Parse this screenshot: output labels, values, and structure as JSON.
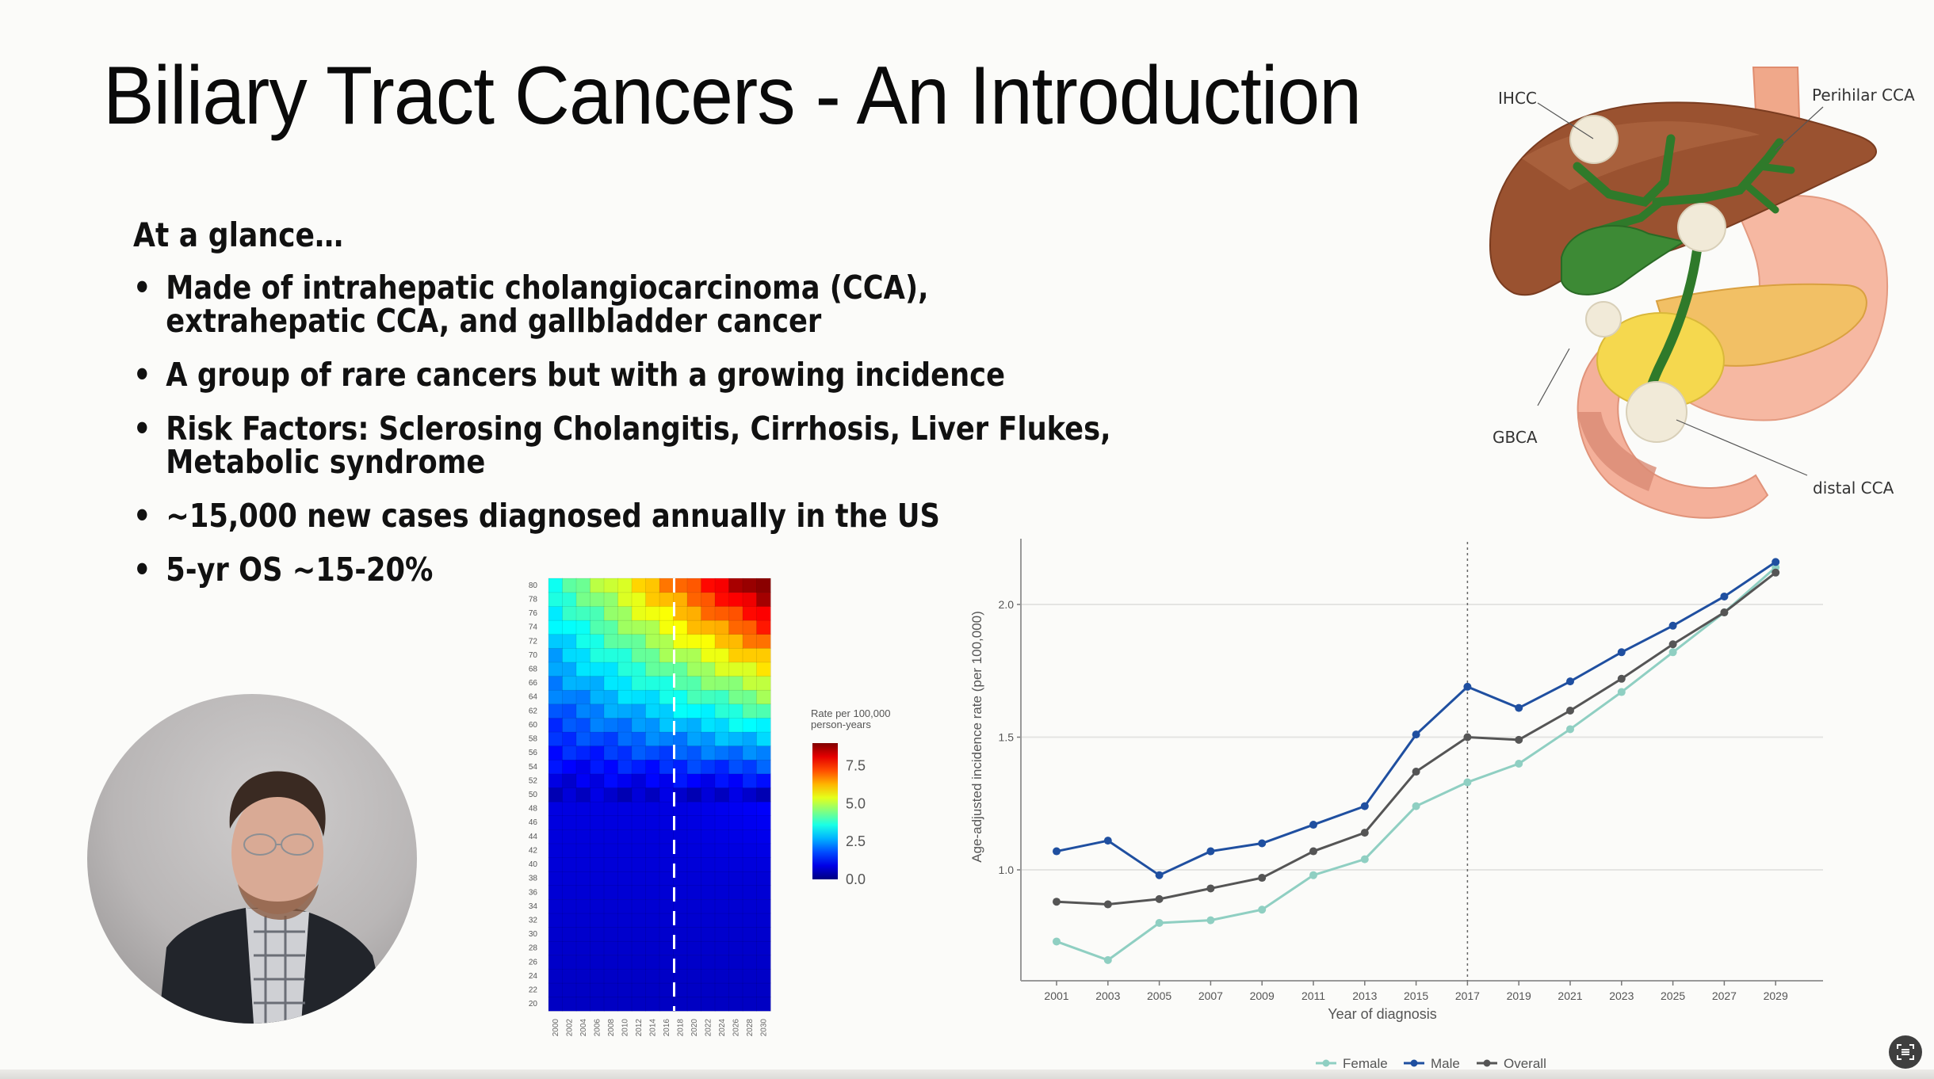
{
  "slide": {
    "title": "Biliary Tract Cancers - An Introduction",
    "subhead": "At a glance…",
    "bullets": [
      "Made of intrahepatic cholangiocarcinoma (CCA),\nextrahepatic CCA, and gallbladder cancer",
      "A group of rare cancers but with a growing incidence",
      "Risk Factors: Sclerosing Cholangitis, Cirrhosis, Liver Flukes,\nMetabolic syndrome",
      "~15,000 new cases diagnosed annually in the US",
      "5-yr OS ~15-20%"
    ]
  },
  "anatomy": {
    "labels": {
      "ihcc": "IHCC",
      "perihilar": "Perihilar CCA",
      "gbca": "GBCA",
      "distal": "distal CCA"
    }
  },
  "webcam": {
    "icon": "presenter-video"
  },
  "fab": {
    "icon": "scan-text-icon"
  },
  "chart_data": [
    {
      "type": "heatmap",
      "title": "",
      "x": [
        2000,
        2002,
        2004,
        2006,
        2008,
        2010,
        2012,
        2014,
        2016,
        2018,
        2020,
        2022,
        2024,
        2026,
        2028,
        2030
      ],
      "x_tick_labels": [
        "2000",
        "2002",
        "2004",
        "2006",
        "2008",
        "2010",
        "2012",
        "2014",
        "2016",
        "2018",
        "2020",
        "2022",
        "2024",
        "2026",
        "2028",
        "2030"
      ],
      "y_tick_labels": [
        "20",
        "22",
        "24",
        "26",
        "28",
        "30",
        "32",
        "34",
        "36",
        "38",
        "40",
        "42",
        "44",
        "46",
        "48",
        "50",
        "52",
        "54",
        "56",
        "58",
        "60",
        "62",
        "64",
        "66",
        "68",
        "70",
        "72",
        "74",
        "76",
        "78",
        "80"
      ],
      "xlabel": "",
      "ylabel": "",
      "colorbar": {
        "title": "Rate per  100,000\nperson-years",
        "ticks": [
          "0.0",
          "2.5",
          "5.0",
          "7.5"
        ],
        "range": [
          0,
          9
        ]
      },
      "reference_line": {
        "x": 2018,
        "style": "white dashed"
      },
      "description": "Incidence rate by age (rows 20–80) and year (columns 2000–2030); rates near 0 for ages <50, rising with age and calendar year, highest (~8+) for ages 70–80 after 2022"
    },
    {
      "type": "line",
      "title": "",
      "xlabel": "Year of diagnosis",
      "ylabel": "Age-adjusted incidence rate (per 100,000)",
      "x": [
        2001,
        2003,
        2005,
        2007,
        2009,
        2011,
        2013,
        2015,
        2017,
        2019,
        2021,
        2023,
        2025,
        2027,
        2029
      ],
      "yticks": [
        "1.0",
        "1.5",
        "2.0"
      ],
      "ylim": [
        0.58,
        2.23
      ],
      "grid": "horizontal",
      "reference_line": {
        "x": 2017,
        "style": "dotted"
      },
      "legend_position": "bottom",
      "series": [
        {
          "name": "Female",
          "color": "#8fcfc2",
          "values": [
            0.73,
            0.66,
            0.8,
            0.81,
            0.85,
            0.98,
            1.04,
            1.24,
            1.33,
            1.4,
            1.53,
            1.67,
            1.82,
            1.97,
            2.14
          ]
        },
        {
          "name": "Male",
          "color": "#1f4fa0",
          "values": [
            1.07,
            1.11,
            0.98,
            1.07,
            1.1,
            1.17,
            1.24,
            1.51,
            1.69,
            1.61,
            1.71,
            1.82,
            1.92,
            2.03,
            2.16
          ]
        },
        {
          "name": "Overall",
          "color": "#555555",
          "values": [
            0.88,
            0.87,
            0.89,
            0.93,
            0.97,
            1.07,
            1.14,
            1.37,
            1.5,
            1.49,
            1.6,
            1.72,
            1.85,
            1.97,
            2.12
          ]
        }
      ]
    }
  ]
}
